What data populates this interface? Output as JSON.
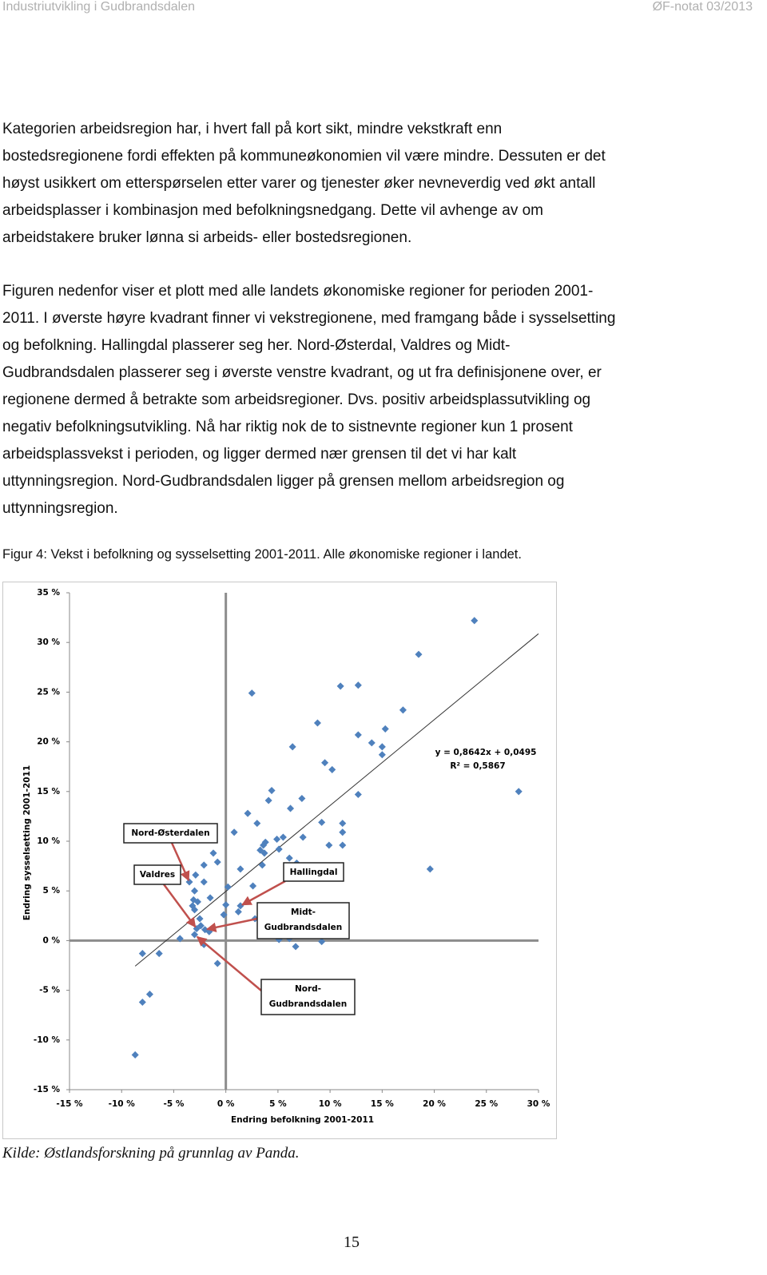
{
  "header": {
    "left": "Industriutvikling i Gudbrandsdalen",
    "right": "ØF-notat 03/2013"
  },
  "paragraphs": [
    [
      "Kategorien arbeidsregion har, i hvert fall på kort sikt, mindre vekstkraft enn",
      "bostedsregionene fordi effekten på kommuneøkonomien vil være mindre. Dessuten er det",
      "høyst usikkert om etterspørselen etter varer og tjenester øker nevneverdig ved økt antall",
      "arbeidsplasser i kombinasjon med befolkningsnedgang. Dette vil avhenge av om",
      "arbeidstakere bruker lønna si arbeids- eller bostedsregionen."
    ],
    [
      "Figuren nedenfor viser et plott med alle landets økonomiske regioner for perioden 2001-",
      "2011. I øverste høyre kvadrant finner vi vekstregionene, med framgang både i sysselsetting",
      "og befolkning. Hallingdal plasserer seg her. Nord-Østerdal, Valdres og Midt-",
      "Gudbrandsdalen plasserer seg i øverste venstre kvadrant, og ut fra definisjonene over, er",
      "regionene dermed å betrakte som arbeidsregioner. Dvs. positiv arbeidsplassutvikling og",
      "negativ befolkningsutvikling. Nå har riktig nok de to sistnevnte regioner kun 1 prosent",
      "arbeidsplassvekst i perioden, og ligger dermed nær grensen til det vi har kalt",
      "uttynningsregion. Nord-Gudbrandsdalen ligger på grensen mellom arbeidsregion og",
      "uttynningsregion."
    ]
  ],
  "figure_caption": "Figur 4: Vekst i befolkning og sysselsetting 2001-2011. Alle økonomiske regioner i landet.",
  "chart_data": {
    "type": "scatter",
    "x_label": "Endring befolkning 2001-2011",
    "y_label": "Endring sysselsetting 2001-2011",
    "color": "#4f81bd",
    "x": [
      23.85,
      18.5,
      28.1,
      19.6,
      2.5,
      11.0,
      12.7,
      17.0,
      8.8,
      12.7,
      14.0,
      15.3,
      15.0,
      15.0,
      6.4,
      9.5,
      10.2,
      12.7,
      4.4,
      7.3,
      6.2,
      2.1,
      4.1,
      3.0,
      0.8,
      9.2,
      11.2,
      11.2,
      4.9,
      5.5,
      7.4,
      3.8,
      3.6,
      9.9,
      11.2,
      5.1,
      3.3,
      3.7,
      3.5,
      6.1,
      6.8,
      -1.2,
      -0.8,
      -2.1,
      -2.9,
      -3.5,
      -2.1,
      1.4,
      0.2,
      2.6,
      -3.0,
      -3.1,
      -3.2,
      -2.7,
      -3.0,
      -1.5,
      0.0,
      1.4,
      1.2,
      -0.2,
      2.8,
      -2.5,
      -2.4,
      -2.8,
      -2.0,
      -1.6,
      -3.0,
      -4.4,
      6.1,
      5.1,
      9.2,
      6.7,
      -2.1,
      -0.8,
      -8.0,
      -6.4,
      -8.0,
      -7.3,
      -8.7
    ],
    "values": [
      32.2,
      28.8,
      15.0,
      7.2,
      24.9,
      25.6,
      25.7,
      23.2,
      21.9,
      20.7,
      19.9,
      21.3,
      19.5,
      18.7,
      19.5,
      17.9,
      17.2,
      14.7,
      15.1,
      14.3,
      13.3,
      12.8,
      14.1,
      11.8,
      10.9,
      11.9,
      11.8,
      10.9,
      10.2,
      10.4,
      10.4,
      9.9,
      9.6,
      9.6,
      9.6,
      9.2,
      9.1,
      8.8,
      7.6,
      8.3,
      7.8,
      8.8,
      7.9,
      7.6,
      6.6,
      5.9,
      5.9,
      7.2,
      5.4,
      5.5,
      5.0,
      4.1,
      3.5,
      3.9,
      3.1,
      4.3,
      3.6,
      3.5,
      2.9,
      2.6,
      2.2,
      2.2,
      1.5,
      1.2,
      1.1,
      0.9,
      0.6,
      0.2,
      0.2,
      0.1,
      -0.1,
      -0.6,
      -0.4,
      -2.3,
      -1.3,
      -1.3,
      -6.2,
      -5.4,
      -11.5
    ],
    "xlim": [
      -15,
      30
    ],
    "ylim": [
      -15,
      35
    ],
    "xticks": [
      {
        "value": -15,
        "label": "-15 %"
      },
      {
        "value": -10,
        "label": "-10 %"
      },
      {
        "value": -5,
        "label": "-5 %"
      },
      {
        "value": 0,
        "label": "0 %"
      },
      {
        "value": 5,
        "label": "5 %"
      },
      {
        "value": 10,
        "label": "10 %"
      },
      {
        "value": 15,
        "label": "15 %"
      },
      {
        "value": 20,
        "label": "20 %"
      },
      {
        "value": 25,
        "label": "25 %"
      },
      {
        "value": 30,
        "label": "30 %"
      }
    ],
    "yticks": [
      {
        "value": -15,
        "label": "-15 %"
      },
      {
        "value": -10,
        "label": "-10 %"
      },
      {
        "value": -5,
        "label": "-5 %"
      },
      {
        "value": 0,
        "label": "0 %"
      },
      {
        "value": 5,
        "label": "5 %"
      },
      {
        "value": 10,
        "label": "10 %"
      },
      {
        "value": 15,
        "label": "15 %"
      },
      {
        "value": 20,
        "label": "20 %"
      },
      {
        "value": 25,
        "label": "25 %"
      },
      {
        "value": 30,
        "label": "30 %"
      },
      {
        "value": 35,
        "label": "35 %"
      }
    ],
    "trendline": {
      "slope": 0.8642,
      "intercept": 4.95,
      "color": "#333333",
      "equation": "y = 0,8642x + 0,0495",
      "r_squared": "R² = 0,5867"
    },
    "annotations": [
      {
        "lines": [
          "Nord-Østerdalen"
        ]
      },
      {
        "lines": [
          "Valdres"
        ]
      },
      {
        "lines": [
          "Hallingdal"
        ]
      },
      {
        "lines": [
          "Midt-",
          "Gudbrandsdalen"
        ]
      },
      {
        "lines": [
          "Nord-",
          "Gudbrandsdalen"
        ]
      }
    ],
    "arrow_color": "#c0504d"
  },
  "source": "Kilde: Østlandsforskning på grunnlag av Panda.",
  "page_number": "15"
}
